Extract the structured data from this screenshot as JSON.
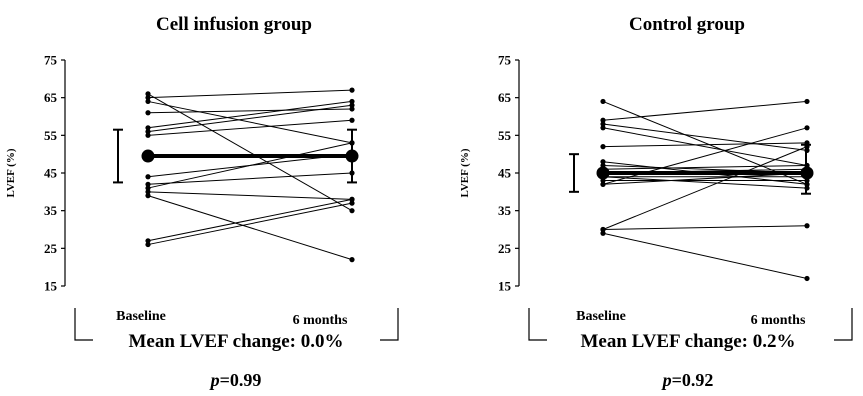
{
  "chart_data": [
    {
      "type": "line",
      "title": "Cell infusion group",
      "ylabel": "LVEF (%)",
      "xlabel": "",
      "categories": [
        "Baseline",
        "6 months"
      ],
      "ylim": [
        15,
        75
      ],
      "yticks": [
        15,
        25,
        35,
        45,
        55,
        65,
        75
      ],
      "grid": false,
      "pairs": [
        [
          66,
          35
        ],
        [
          65,
          67
        ],
        [
          64,
          53
        ],
        [
          61,
          62
        ],
        [
          57,
          64
        ],
        [
          56,
          63
        ],
        [
          55,
          59
        ],
        [
          44,
          50
        ],
        [
          42,
          45
        ],
        [
          41,
          53
        ],
        [
          40,
          38
        ],
        [
          39,
          22
        ],
        [
          27,
          38
        ],
        [
          26,
          37
        ]
      ],
      "mean": [
        49.5,
        49.5
      ],
      "error": [
        {
          "low": 42.5,
          "high": 56.5
        },
        {
          "low": 42.5,
          "high": 56.5
        }
      ],
      "change_label": "Mean LVEF change: 0.0%",
      "p_label": "p",
      "p_value": "=0.99"
    },
    {
      "type": "line",
      "title": "Control group",
      "ylabel": "LVEF (%)",
      "xlabel": "",
      "categories": [
        "Baseline",
        "6 months"
      ],
      "ylim": [
        15,
        75
      ],
      "yticks": [
        15,
        25,
        35,
        45,
        55,
        65,
        75
      ],
      "grid": false,
      "pairs": [
        [
          64,
          42
        ],
        [
          59,
          64
        ],
        [
          58,
          51
        ],
        [
          57,
          47
        ],
        [
          52,
          53
        ],
        [
          48,
          42
        ],
        [
          47,
          45
        ],
        [
          46,
          47
        ],
        [
          45,
          46
        ],
        [
          44,
          41
        ],
        [
          44,
          44
        ],
        [
          43,
          43
        ],
        [
          42,
          57
        ],
        [
          42,
          45
        ],
        [
          30,
          31
        ],
        [
          30,
          52
        ],
        [
          29,
          17
        ]
      ],
      "mean": [
        45,
        45
      ],
      "error": [
        {
          "low": 40,
          "high": 50
        },
        {
          "low": 39.5,
          "high": 52.5
        }
      ],
      "change_label": "Mean LVEF change: 0.2%",
      "p_label": "p",
      "p_value": "=0.92"
    }
  ]
}
